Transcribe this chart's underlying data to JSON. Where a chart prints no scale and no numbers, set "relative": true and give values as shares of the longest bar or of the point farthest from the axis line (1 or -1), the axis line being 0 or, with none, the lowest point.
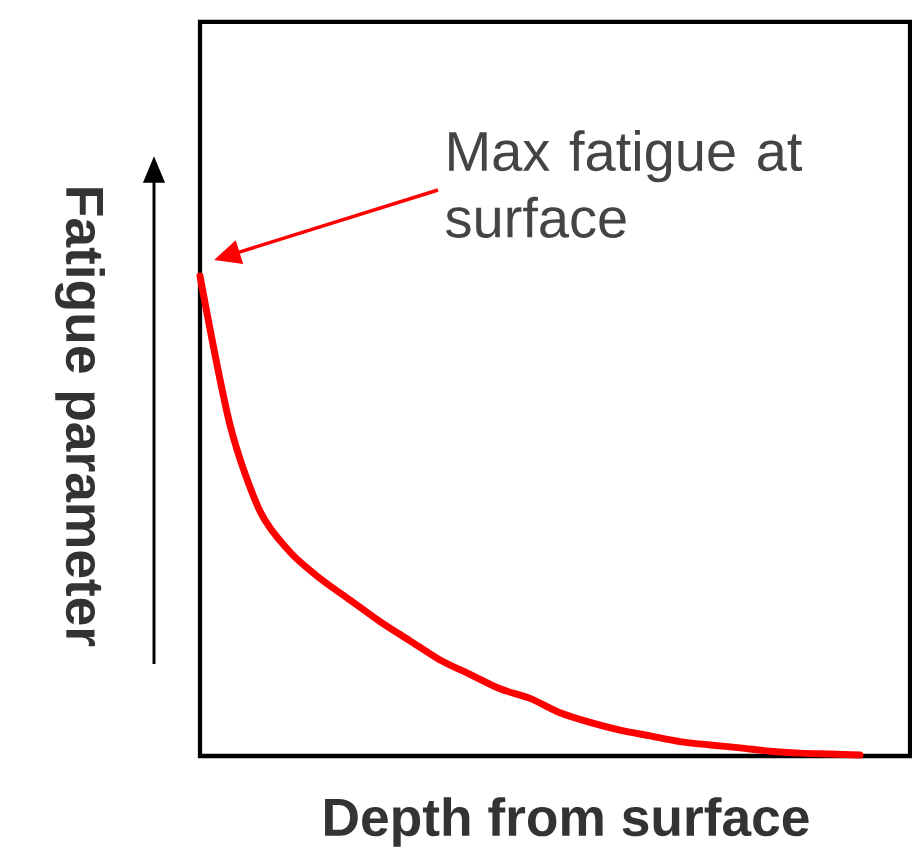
{
  "chart_data": {
    "type": "line",
    "relative": true,
    "xlabel": "Depth from surface",
    "ylabel": "Fatigue parameter",
    "categories": [
      null,
      null,
      null,
      null,
      null,
      null,
      null,
      null,
      null,
      null,
      null,
      null,
      null,
      null,
      null,
      null,
      null,
      null,
      null,
      null,
      null,
      null,
      null
    ],
    "series": [
      {
        "color": "#ff0000",
        "values": [
          1.0,
          0.69,
          0.51,
          0.425,
          0.37,
          0.325,
          0.28,
          0.24,
          0.2,
          0.17,
          0.14,
          0.12,
          0.09,
          0.07,
          0.054,
          0.042,
          0.03,
          0.023,
          0.017,
          0.01,
          0.006,
          0.004,
          0.002
        ]
      }
    ],
    "marker": "none",
    "line_style": "solid",
    "annotations": [
      "Max fatigue at surface"
    ]
  }
}
